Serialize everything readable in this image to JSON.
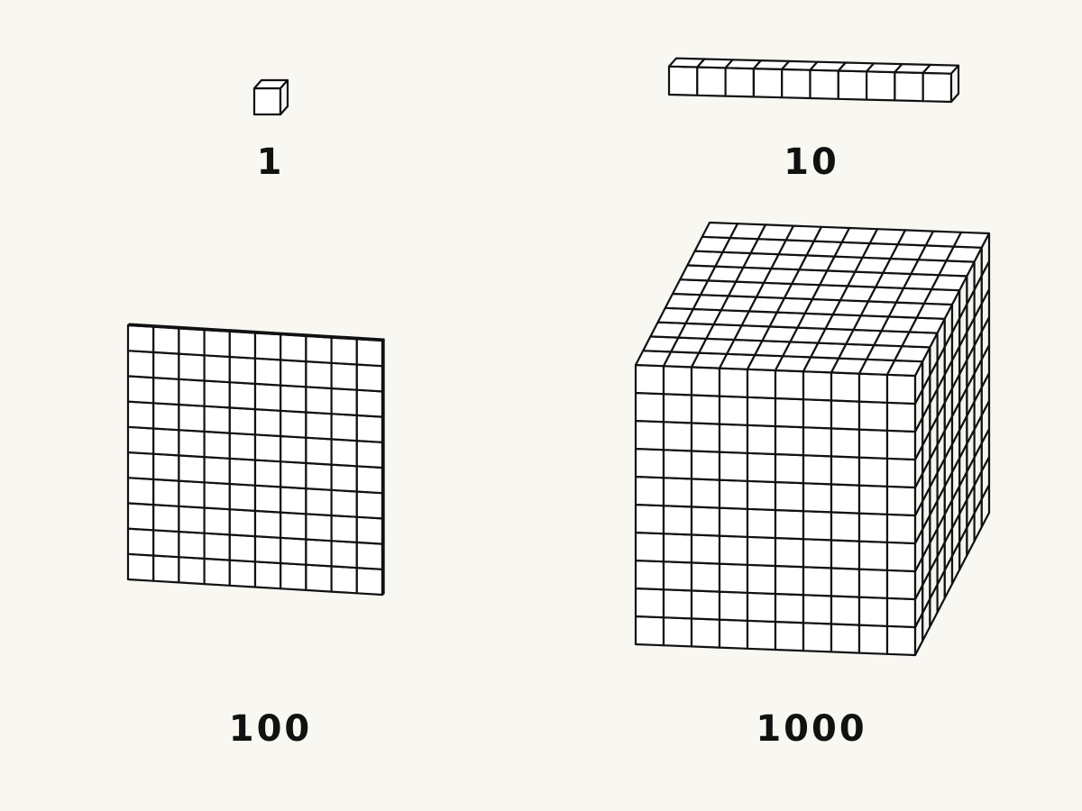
{
  "figure": {
    "background": "#f8f7f2",
    "block_fill": "#ffffff",
    "block_side_fill": "#f4f4f1",
    "stroke": "#111111"
  },
  "blocks": {
    "ones": {
      "label": "1",
      "length": 1,
      "width": 1,
      "height": 1
    },
    "tens": {
      "label": "10",
      "length": 10,
      "width": 1,
      "height": 1
    },
    "hundreds": {
      "label": "100",
      "length": 10,
      "width": 1,
      "height": 10
    },
    "thousands": {
      "label": "1000",
      "length": 10,
      "width": 10,
      "height": 10
    }
  }
}
